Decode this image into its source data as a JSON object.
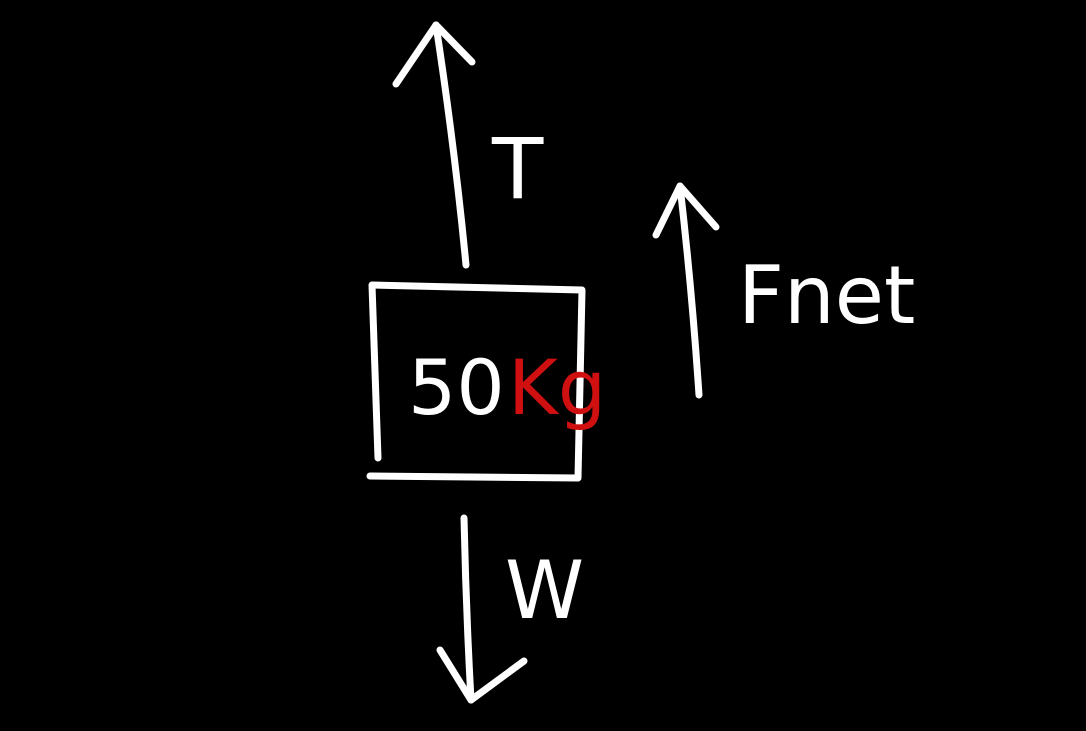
{
  "forces": [
    {
      "label": "T"
    },
    {
      "label": "Fnet"
    },
    {
      "label": "W"
    }
  ],
  "block": {
    "mass": 50,
    "unit": "Kg"
  }
}
